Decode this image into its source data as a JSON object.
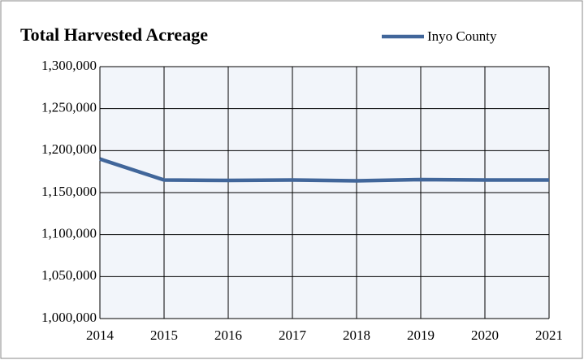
{
  "chart_data": {
    "type": "line",
    "title": "Total Harvested Acreage",
    "x": [
      2014,
      2015,
      2016,
      2017,
      2018,
      2019,
      2020,
      2021
    ],
    "series": [
      {
        "name": "Inyo County",
        "color": "#41669a",
        "values": [
          1190000,
          1165000,
          1164500,
          1165000,
          1164000,
          1165500,
          1165000,
          1165000
        ]
      }
    ],
    "xlim": [
      2014,
      2021
    ],
    "xticks": [
      2014,
      2015,
      2016,
      2017,
      2018,
      2019,
      2020,
      2021
    ],
    "ylim": [
      1000000,
      1300000
    ],
    "yticks": [
      {
        "value": 1000000,
        "label": "1,000,000"
      },
      {
        "value": 1050000,
        "label": "1,050,000"
      },
      {
        "value": 1100000,
        "label": "1,100,000"
      },
      {
        "value": 1150000,
        "label": "1,150,000"
      },
      {
        "value": 1200000,
        "label": "1,200,000"
      },
      {
        "value": 1250000,
        "label": "1,250,000"
      },
      {
        "value": 1300000,
        "label": "1,300,000"
      }
    ],
    "grid": true
  }
}
